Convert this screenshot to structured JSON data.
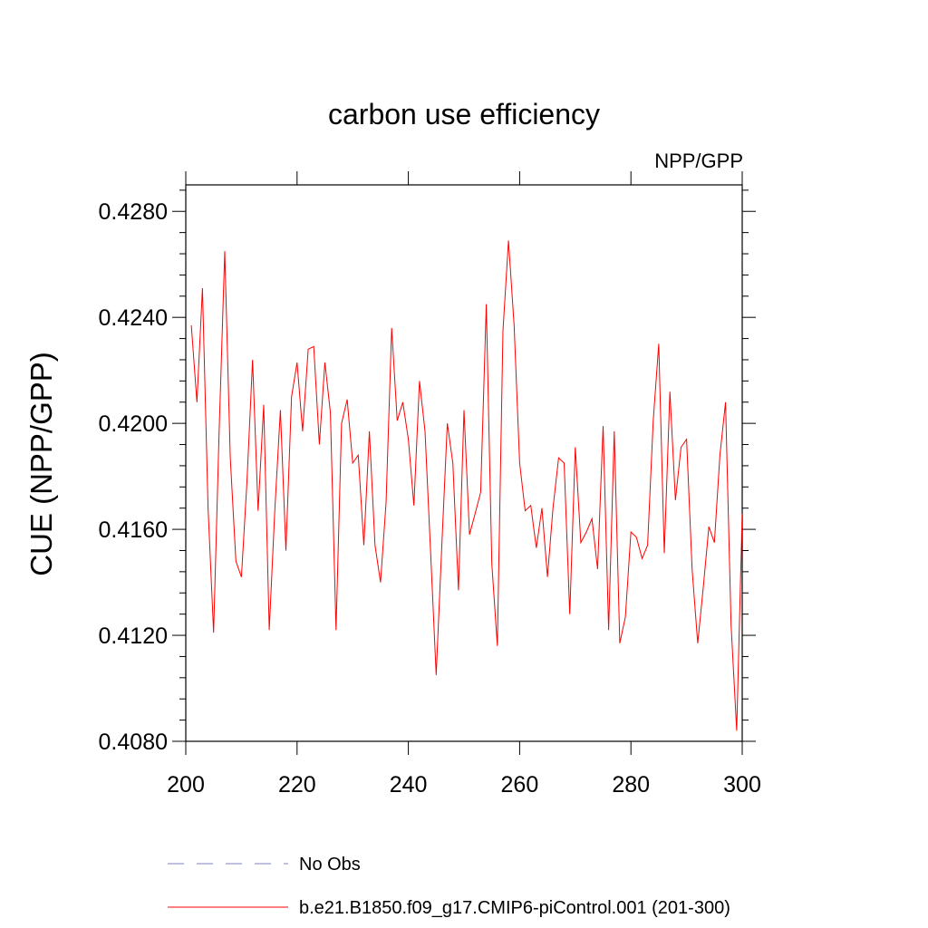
{
  "chart_data": {
    "type": "line",
    "title": "carbon use efficiency",
    "subtitle": "NPP/GPP",
    "ylabel": "CUE  (NPP/GPP)",
    "xlabel": "",
    "xlim": [
      200,
      300
    ],
    "ylim": [
      0.408,
      0.429
    ],
    "x_ticks": [
      200,
      220,
      240,
      260,
      280,
      300
    ],
    "x_tick_labels": [
      "200",
      "220",
      "240",
      "260",
      "280",
      "300"
    ],
    "y_ticks": [
      0.408,
      0.412,
      0.416,
      0.42,
      0.424,
      0.428
    ],
    "y_tick_labels": [
      "0.4080",
      "0.4120",
      "0.4160",
      "0.4200",
      "0.4240",
      "0.4280"
    ],
    "grid": false,
    "legend_position": "bottom",
    "legend": [
      {
        "label": "No Obs",
        "color": "#8080c0",
        "style": "dashed"
      },
      {
        "label": "b.e21.B1850.f09_g17.CMIP6-piControl.001 (201-300)",
        "color": "#ff0000",
        "style": "solid"
      }
    ],
    "series": [
      {
        "name": "b.e21.B1850.f09_g17.CMIP6-piControl.001 (201-300)",
        "color": "#ff0000",
        "x": [
          201,
          202,
          203,
          204,
          205,
          206,
          207,
          208,
          209,
          210,
          211,
          212,
          213,
          214,
          215,
          216,
          217,
          218,
          219,
          220,
          221,
          222,
          223,
          224,
          225,
          226,
          227,
          228,
          229,
          230,
          231,
          232,
          233,
          234,
          235,
          236,
          237,
          238,
          239,
          240,
          241,
          242,
          243,
          244,
          245,
          246,
          247,
          248,
          249,
          250,
          251,
          252,
          253,
          254,
          255,
          256,
          257,
          258,
          259,
          260,
          261,
          262,
          263,
          264,
          265,
          266,
          267,
          268,
          269,
          270,
          271,
          272,
          273,
          274,
          275,
          276,
          277,
          278,
          279,
          280,
          281,
          282,
          283,
          284,
          285,
          286,
          287,
          288,
          289,
          290,
          291,
          292,
          293,
          294,
          295,
          296,
          297,
          298,
          299,
          300
        ],
        "values": [
          0.4237,
          0.4208,
          0.4251,
          0.4168,
          0.4121,
          0.4197,
          0.4265,
          0.4187,
          0.4148,
          0.4142,
          0.4178,
          0.4224,
          0.4167,
          0.4207,
          0.4122,
          0.4167,
          0.4205,
          0.4152,
          0.421,
          0.4223,
          0.4197,
          0.4228,
          0.4229,
          0.4192,
          0.4223,
          0.4204,
          0.4122,
          0.42,
          0.4209,
          0.4185,
          0.4188,
          0.4154,
          0.4197,
          0.4154,
          0.414,
          0.417,
          0.4236,
          0.4201,
          0.4208,
          0.4194,
          0.4169,
          0.4216,
          0.4197,
          0.4151,
          0.4105,
          0.4153,
          0.42,
          0.4185,
          0.4137,
          0.4205,
          0.4158,
          0.4166,
          0.4174,
          0.4245,
          0.4147,
          0.4116,
          0.4235,
          0.4269,
          0.4237,
          0.4185,
          0.4167,
          0.4169,
          0.4153,
          0.4168,
          0.4142,
          0.4168,
          0.4187,
          0.4185,
          0.4128,
          0.4191,
          0.4155,
          0.4159,
          0.4164,
          0.4145,
          0.4199,
          0.4122,
          0.4197,
          0.4117,
          0.4127,
          0.4159,
          0.4157,
          0.4149,
          0.4154,
          0.4201,
          0.423,
          0.4151,
          0.4212,
          0.4171,
          0.4191,
          0.4194,
          0.4145,
          0.4117,
          0.4138,
          0.4161,
          0.4155,
          0.4188,
          0.4208,
          0.4124,
          0.4084,
          0.4166
        ]
      }
    ]
  }
}
